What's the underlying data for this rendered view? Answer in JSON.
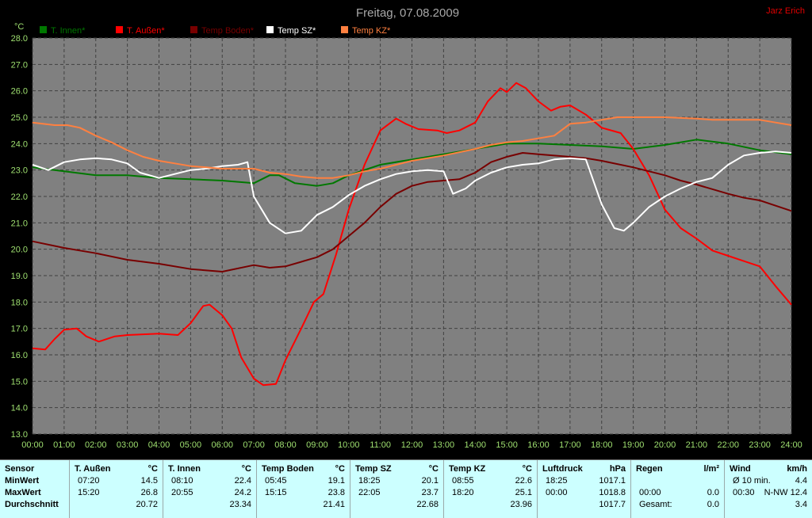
{
  "header": {
    "title": "Freitag, 07.08.2009",
    "author": "Jarz Erich"
  },
  "chart_data": {
    "type": "line",
    "ylabel": "°C",
    "ylim": [
      13.0,
      28.0
    ],
    "yticks": [
      "13.0",
      "14.0",
      "15.0",
      "16.0",
      "17.0",
      "18.0",
      "19.0",
      "20.0",
      "21.0",
      "22.0",
      "23.0",
      "24.0",
      "25.0",
      "26.0",
      "27.0",
      "28.0"
    ],
    "xlim": [
      0,
      24
    ],
    "xticks": [
      "00:00",
      "01:00",
      "02:00",
      "03:00",
      "04:00",
      "05:00",
      "06:00",
      "07:00",
      "08:00",
      "09:00",
      "10:00",
      "11:00",
      "12:00",
      "13:00",
      "14:00",
      "15:00",
      "16:00",
      "17:00",
      "18:00",
      "19:00",
      "20:00",
      "21:00",
      "22:00",
      "23:00",
      "24:00"
    ],
    "grid": true,
    "legend": "top",
    "series": [
      {
        "name": "T. Innen*",
        "color": "#007800",
        "points": [
          [
            0,
            23.1
          ],
          [
            1,
            22.95
          ],
          [
            2,
            22.8
          ],
          [
            3,
            22.8
          ],
          [
            4,
            22.7
          ],
          [
            5,
            22.65
          ],
          [
            6,
            22.6
          ],
          [
            7,
            22.5
          ],
          [
            7.5,
            22.8
          ],
          [
            7.8,
            22.8
          ],
          [
            8.3,
            22.5
          ],
          [
            9,
            22.4
          ],
          [
            9.5,
            22.5
          ],
          [
            10,
            22.8
          ],
          [
            11,
            23.2
          ],
          [
            12,
            23.4
          ],
          [
            13,
            23.6
          ],
          [
            14,
            23.8
          ],
          [
            15,
            24.0
          ],
          [
            16,
            24.0
          ],
          [
            17,
            23.95
          ],
          [
            18,
            23.9
          ],
          [
            19,
            23.8
          ],
          [
            20,
            23.95
          ],
          [
            21,
            24.15
          ],
          [
            22,
            24.0
          ],
          [
            23,
            23.75
          ],
          [
            24,
            23.6
          ]
        ]
      },
      {
        "name": "T. Außen*",
        "color": "#ff0000",
        "points": [
          [
            0,
            16.25
          ],
          [
            0.4,
            16.2
          ],
          [
            0.7,
            16.6
          ],
          [
            1,
            16.95
          ],
          [
            1.4,
            17.0
          ],
          [
            1.7,
            16.7
          ],
          [
            2.1,
            16.5
          ],
          [
            2.6,
            16.7
          ],
          [
            3,
            16.75
          ],
          [
            4,
            16.8
          ],
          [
            4.6,
            16.75
          ],
          [
            5,
            17.2
          ],
          [
            5.4,
            17.85
          ],
          [
            5.6,
            17.9
          ],
          [
            6,
            17.5
          ],
          [
            6.3,
            17.0
          ],
          [
            6.6,
            15.9
          ],
          [
            7,
            15.1
          ],
          [
            7.3,
            14.85
          ],
          [
            7.7,
            14.9
          ],
          [
            8,
            15.8
          ],
          [
            8.5,
            17.0
          ],
          [
            8.9,
            18.0
          ],
          [
            9.2,
            18.3
          ],
          [
            9.6,
            19.8
          ],
          [
            10,
            21.5
          ],
          [
            10.5,
            23.2
          ],
          [
            11,
            24.5
          ],
          [
            11.5,
            24.95
          ],
          [
            11.8,
            24.75
          ],
          [
            12.2,
            24.55
          ],
          [
            12.8,
            24.5
          ],
          [
            13.1,
            24.4
          ],
          [
            13.5,
            24.5
          ],
          [
            14,
            24.8
          ],
          [
            14.4,
            25.6
          ],
          [
            14.8,
            26.1
          ],
          [
            15,
            25.95
          ],
          [
            15.3,
            26.3
          ],
          [
            15.6,
            26.1
          ],
          [
            16,
            25.6
          ],
          [
            16.4,
            25.25
          ],
          [
            16.7,
            25.4
          ],
          [
            17,
            25.45
          ],
          [
            17.5,
            25.1
          ],
          [
            18,
            24.6
          ],
          [
            18.6,
            24.4
          ],
          [
            19,
            23.8
          ],
          [
            19.5,
            22.8
          ],
          [
            20,
            21.5
          ],
          [
            20.5,
            20.8
          ],
          [
            21,
            20.4
          ],
          [
            21.5,
            19.95
          ],
          [
            22,
            19.75
          ],
          [
            22.5,
            19.55
          ],
          [
            23,
            19.35
          ],
          [
            23.5,
            18.6
          ],
          [
            24,
            17.9
          ]
        ]
      },
      {
        "name": "Temp Boden*",
        "color": "#780000",
        "points": [
          [
            0,
            20.3
          ],
          [
            1,
            20.05
          ],
          [
            2,
            19.85
          ],
          [
            3,
            19.6
          ],
          [
            4,
            19.45
          ],
          [
            5,
            19.25
          ],
          [
            6,
            19.15
          ],
          [
            7,
            19.4
          ],
          [
            7.5,
            19.3
          ],
          [
            8,
            19.35
          ],
          [
            9,
            19.7
          ],
          [
            9.5,
            20.0
          ],
          [
            10,
            20.5
          ],
          [
            10.5,
            21.0
          ],
          [
            11,
            21.6
          ],
          [
            11.5,
            22.1
          ],
          [
            12,
            22.4
          ],
          [
            12.5,
            22.55
          ],
          [
            13,
            22.6
          ],
          [
            13.5,
            22.65
          ],
          [
            14,
            22.9
          ],
          [
            14.5,
            23.3
          ],
          [
            15,
            23.5
          ],
          [
            15.5,
            23.65
          ],
          [
            16,
            23.6
          ],
          [
            17,
            23.5
          ],
          [
            17.5,
            23.45
          ],
          [
            18,
            23.35
          ],
          [
            19,
            23.1
          ],
          [
            20,
            22.8
          ],
          [
            20.5,
            22.6
          ],
          [
            21,
            22.45
          ],
          [
            22,
            22.1
          ],
          [
            22.5,
            21.95
          ],
          [
            23,
            21.85
          ],
          [
            24,
            21.45
          ]
        ]
      },
      {
        "name": "Temp SZ*",
        "color": "#ffffff",
        "points": [
          [
            0,
            23.2
          ],
          [
            0.5,
            23.0
          ],
          [
            1,
            23.3
          ],
          [
            1.5,
            23.4
          ],
          [
            2,
            23.45
          ],
          [
            2.5,
            23.4
          ],
          [
            3,
            23.25
          ],
          [
            3.4,
            22.9
          ],
          [
            4,
            22.7
          ],
          [
            4.5,
            22.85
          ],
          [
            5,
            23.0
          ],
          [
            5.5,
            23.05
          ],
          [
            6,
            23.15
          ],
          [
            6.5,
            23.2
          ],
          [
            6.8,
            23.3
          ],
          [
            7,
            22.0
          ],
          [
            7.5,
            21.0
          ],
          [
            8,
            20.6
          ],
          [
            8.5,
            20.7
          ],
          [
            9,
            21.3
          ],
          [
            9.5,
            21.6
          ],
          [
            10,
            22.05
          ],
          [
            10.5,
            22.4
          ],
          [
            11,
            22.65
          ],
          [
            11.5,
            22.85
          ],
          [
            12,
            22.95
          ],
          [
            12.5,
            23.0
          ],
          [
            13,
            22.95
          ],
          [
            13.3,
            22.1
          ],
          [
            13.7,
            22.3
          ],
          [
            14,
            22.6
          ],
          [
            14.5,
            22.9
          ],
          [
            15,
            23.1
          ],
          [
            15.5,
            23.2
          ],
          [
            16,
            23.25
          ],
          [
            16.5,
            23.4
          ],
          [
            17,
            23.45
          ],
          [
            17.5,
            23.4
          ],
          [
            18,
            21.7
          ],
          [
            18.4,
            20.8
          ],
          [
            18.7,
            20.7
          ],
          [
            19,
            21.0
          ],
          [
            19.5,
            21.6
          ],
          [
            20,
            22.0
          ],
          [
            20.5,
            22.3
          ],
          [
            21,
            22.55
          ],
          [
            21.5,
            22.7
          ],
          [
            22,
            23.2
          ],
          [
            22.5,
            23.55
          ],
          [
            23,
            23.65
          ],
          [
            23.5,
            23.7
          ],
          [
            24,
            23.65
          ]
        ]
      },
      {
        "name": "Temp KZ*",
        "color": "#ff8040",
        "points": [
          [
            0,
            24.8
          ],
          [
            0.7,
            24.7
          ],
          [
            1.1,
            24.7
          ],
          [
            1.5,
            24.6
          ],
          [
            2,
            24.3
          ],
          [
            2.5,
            24.05
          ],
          [
            3,
            23.75
          ],
          [
            3.5,
            23.5
          ],
          [
            4,
            23.35
          ],
          [
            4.5,
            23.25
          ],
          [
            5,
            23.15
          ],
          [
            5.5,
            23.1
          ],
          [
            6,
            23.05
          ],
          [
            7,
            23.05
          ],
          [
            7.5,
            22.9
          ],
          [
            8,
            22.85
          ],
          [
            8.5,
            22.75
          ],
          [
            9,
            22.7
          ],
          [
            9.5,
            22.7
          ],
          [
            10,
            22.8
          ],
          [
            10.5,
            22.95
          ],
          [
            11,
            23.05
          ],
          [
            11.5,
            23.2
          ],
          [
            12,
            23.35
          ],
          [
            13,
            23.55
          ],
          [
            14,
            23.8
          ],
          [
            14.5,
            23.95
          ],
          [
            15,
            24.05
          ],
          [
            15.5,
            24.1
          ],
          [
            16,
            24.2
          ],
          [
            16.5,
            24.3
          ],
          [
            17,
            24.75
          ],
          [
            17.5,
            24.8
          ],
          [
            18,
            24.9
          ],
          [
            18.5,
            25.0
          ],
          [
            19,
            25.0
          ],
          [
            20,
            25.0
          ],
          [
            21,
            24.95
          ],
          [
            21.5,
            24.9
          ],
          [
            22,
            24.9
          ],
          [
            23,
            24.9
          ],
          [
            23.5,
            24.8
          ],
          [
            24,
            24.7
          ]
        ]
      }
    ]
  },
  "stats": {
    "row_labels": [
      "MinWert",
      "MaxWert",
      "Durchschnitt"
    ],
    "columns": [
      {
        "name": "Sensor",
        "unit": "",
        "rows": [
          [
            "",
            ""
          ],
          [
            "",
            ""
          ],
          [
            "",
            ""
          ]
        ]
      },
      {
        "name": "T. Außen",
        "unit": "°C",
        "rows": [
          [
            "07:20",
            "14.5"
          ],
          [
            "15:20",
            "26.8"
          ],
          [
            "",
            "20.72"
          ]
        ]
      },
      {
        "name": "T. Innen",
        "unit": "°C",
        "rows": [
          [
            "08:10",
            "22.4"
          ],
          [
            "20:55",
            "24.2"
          ],
          [
            "",
            "23.34"
          ]
        ]
      },
      {
        "name": "Temp Boden",
        "unit": "°C",
        "rows": [
          [
            "05:45",
            "19.1"
          ],
          [
            "15:15",
            "23.8"
          ],
          [
            "",
            "21.41"
          ]
        ]
      },
      {
        "name": "Temp SZ",
        "unit": "°C",
        "rows": [
          [
            "18:25",
            "20.1"
          ],
          [
            "22:05",
            "23.7"
          ],
          [
            "",
            "22.68"
          ]
        ]
      },
      {
        "name": "Temp KZ",
        "unit": "°C",
        "rows": [
          [
            "08:55",
            "22.6"
          ],
          [
            "18:20",
            "25.1"
          ],
          [
            "",
            "23.96"
          ]
        ]
      },
      {
        "name": "Luftdruck",
        "unit": "hPa",
        "rows": [
          [
            "18:25",
            "1017.1"
          ],
          [
            "00:00",
            "1018.8"
          ],
          [
            "",
            "1017.7"
          ]
        ]
      },
      {
        "name": "Regen",
        "unit": "l/m²",
        "rows": [
          [
            "",
            ""
          ],
          [
            "00:00",
            "0.0"
          ],
          [
            "Gesamt:",
            "0.0"
          ]
        ]
      },
      {
        "name": "Wind",
        "unit": "km/h",
        "rows": [
          [
            "Ø 10 min.",
            "4.4"
          ],
          [
            "00:30",
            "N-NW 12.4"
          ],
          [
            "",
            "3.4"
          ]
        ]
      }
    ]
  }
}
